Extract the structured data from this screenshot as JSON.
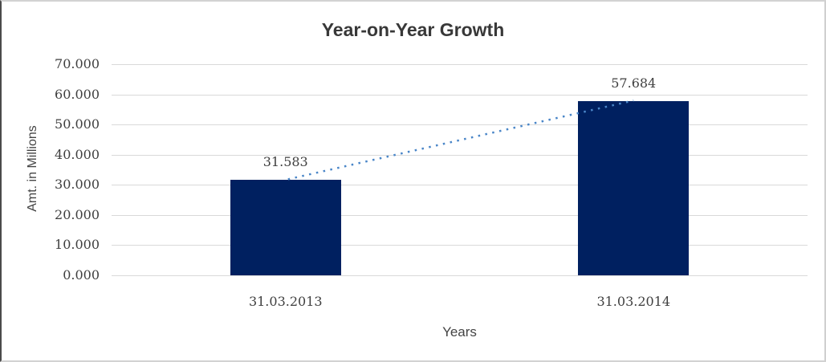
{
  "chart_data": {
    "type": "bar",
    "title": "Year-on-Year Growth",
    "xlabel": "Years",
    "ylabel": "Amt. in Millions",
    "categories": [
      "31.03.2013",
      "31.03.2014"
    ],
    "values": [
      31.583,
      57.684
    ],
    "value_labels": [
      "31.583",
      "57.684"
    ],
    "ylim": [
      0,
      70
    ],
    "y_ticks": [
      {
        "value": 70,
        "label": "70.000"
      },
      {
        "value": 60,
        "label": "60.000"
      },
      {
        "value": 50,
        "label": "50.000"
      },
      {
        "value": 40,
        "label": "40.000"
      },
      {
        "value": 30,
        "label": "30.000"
      },
      {
        "value": 20,
        "label": "20.000"
      },
      {
        "value": 10,
        "label": "10.000"
      },
      {
        "value": 0,
        "label": "0.000"
      }
    ],
    "grid": true,
    "legend": "none",
    "trendline": {
      "type": "linear",
      "style": "dotted"
    },
    "colors": {
      "bar": "#002060",
      "trendline": "#4a86c8",
      "gridline": "#d9d9d9",
      "text": "#3f3f3f"
    }
  }
}
